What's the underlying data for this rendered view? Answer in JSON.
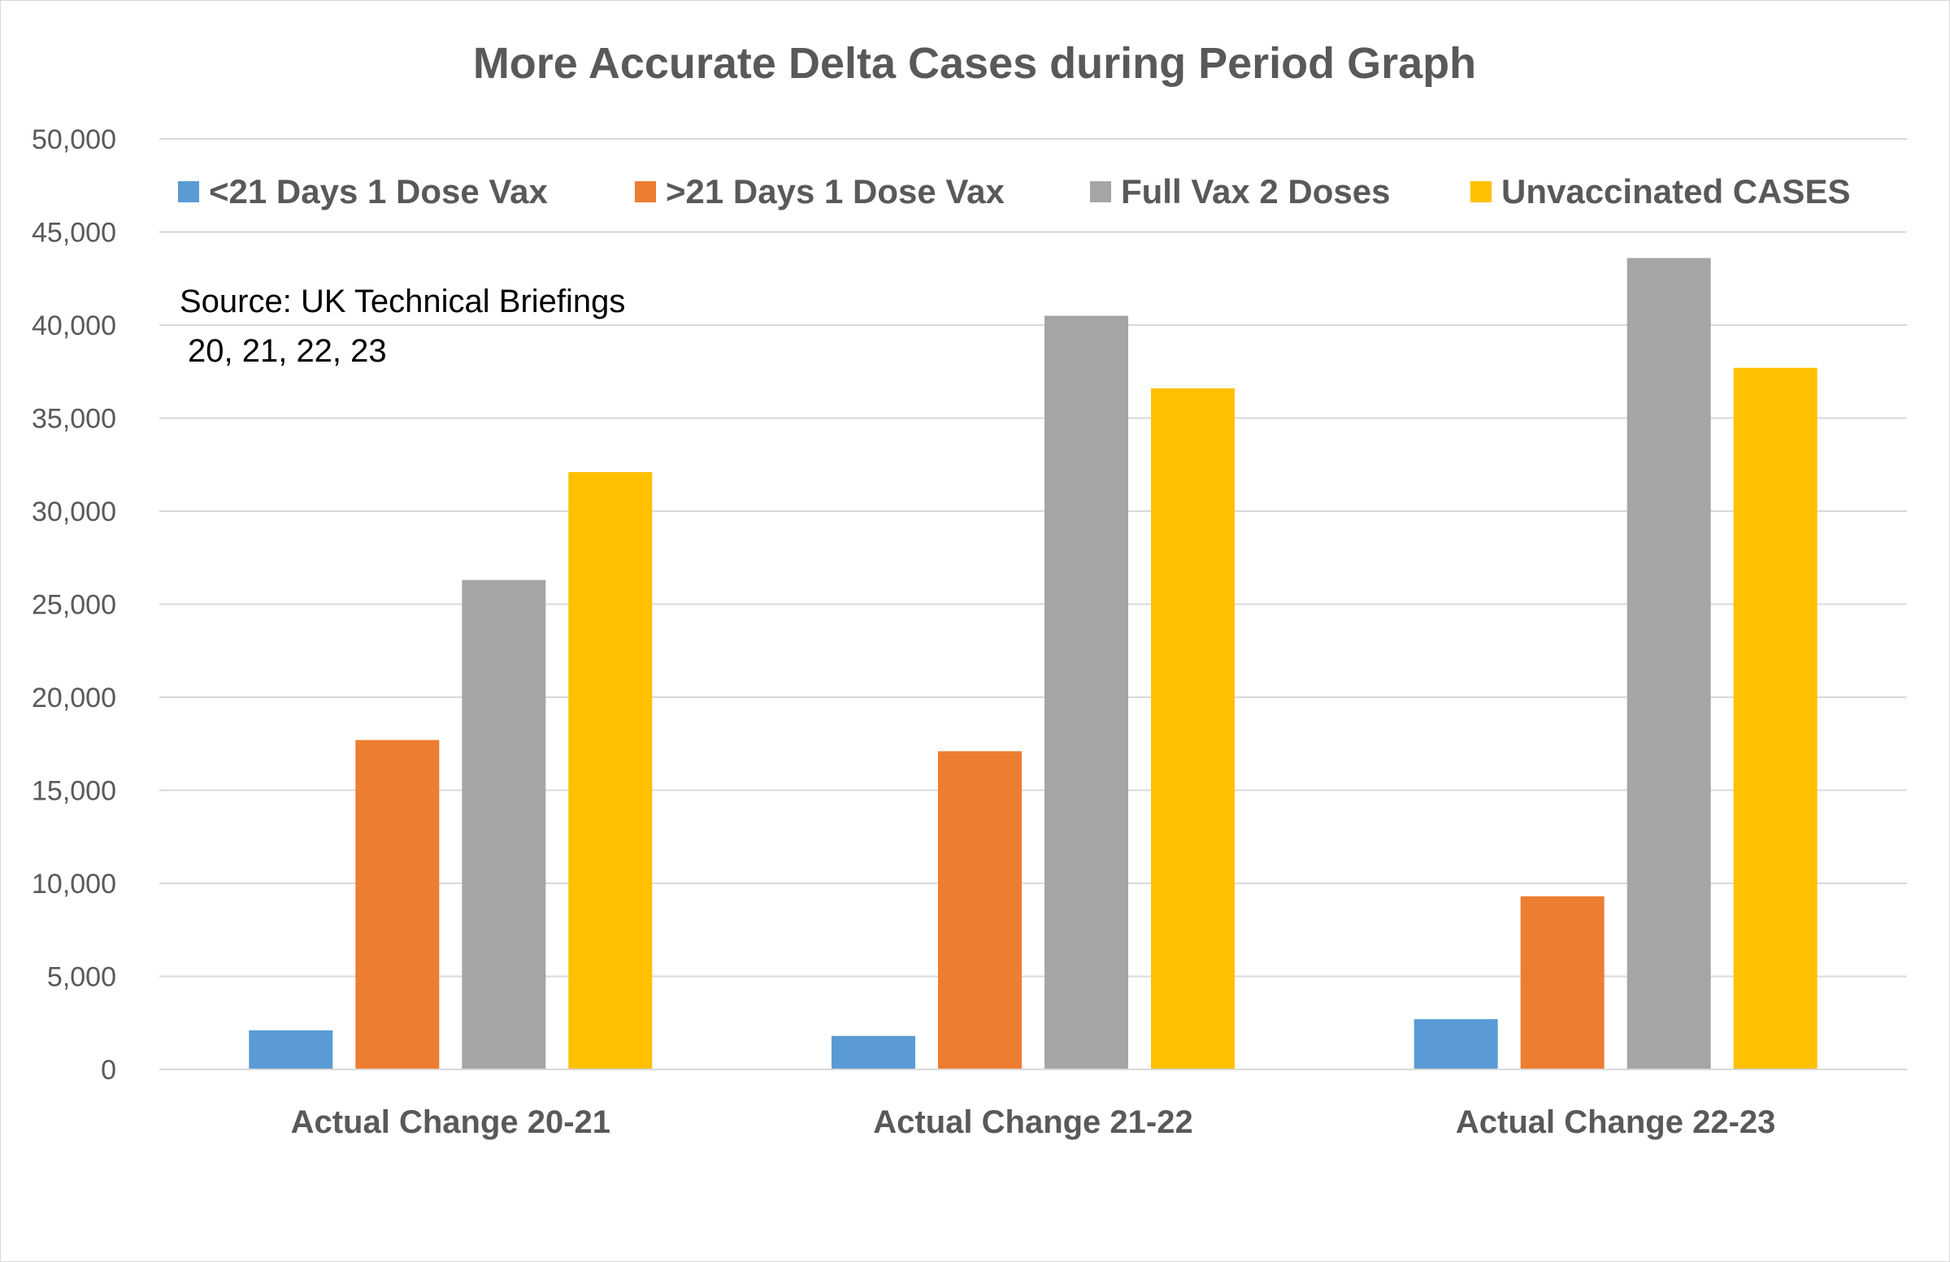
{
  "chart_data": {
    "type": "bar",
    "title": "More Accurate Delta Cases during Period Graph",
    "categories": [
      "Actual Change 20-21",
      "Actual Change 21-22",
      "Actual Change 22-23"
    ],
    "series": [
      {
        "name": "<21 Days 1 Dose Vax",
        "color": "#5B9BD5",
        "values": [
          2100,
          1800,
          2700
        ]
      },
      {
        "name": ">21 Days 1 Dose Vax",
        "color": "#ED7D31",
        "values": [
          17700,
          17100,
          9300
        ]
      },
      {
        "name": "Full Vax 2 Doses",
        "color": "#A5A5A5",
        "values": [
          26300,
          40500,
          43600
        ]
      },
      {
        "name": "Unvaccinated CASES",
        "color": "#FFC000",
        "values": [
          32100,
          36600,
          37700
        ]
      }
    ],
    "ylim": [
      0,
      50000
    ],
    "yticks": [
      0,
      5000,
      10000,
      15000,
      20000,
      25000,
      30000,
      35000,
      40000,
      45000,
      50000
    ],
    "ytick_labels": [
      "0",
      "5,000",
      "10,000",
      "15,000",
      "20,000",
      "25,000",
      "30,000",
      "35,000",
      "40,000",
      "45,000",
      "50,000"
    ],
    "xlabel": "",
    "ylabel": "",
    "grid": true,
    "legend_position": "top",
    "annotation": [
      "Source: UK Technical Briefings",
      "20, 21, 22, 23"
    ],
    "gridline_color": "#d9d9d9"
  }
}
